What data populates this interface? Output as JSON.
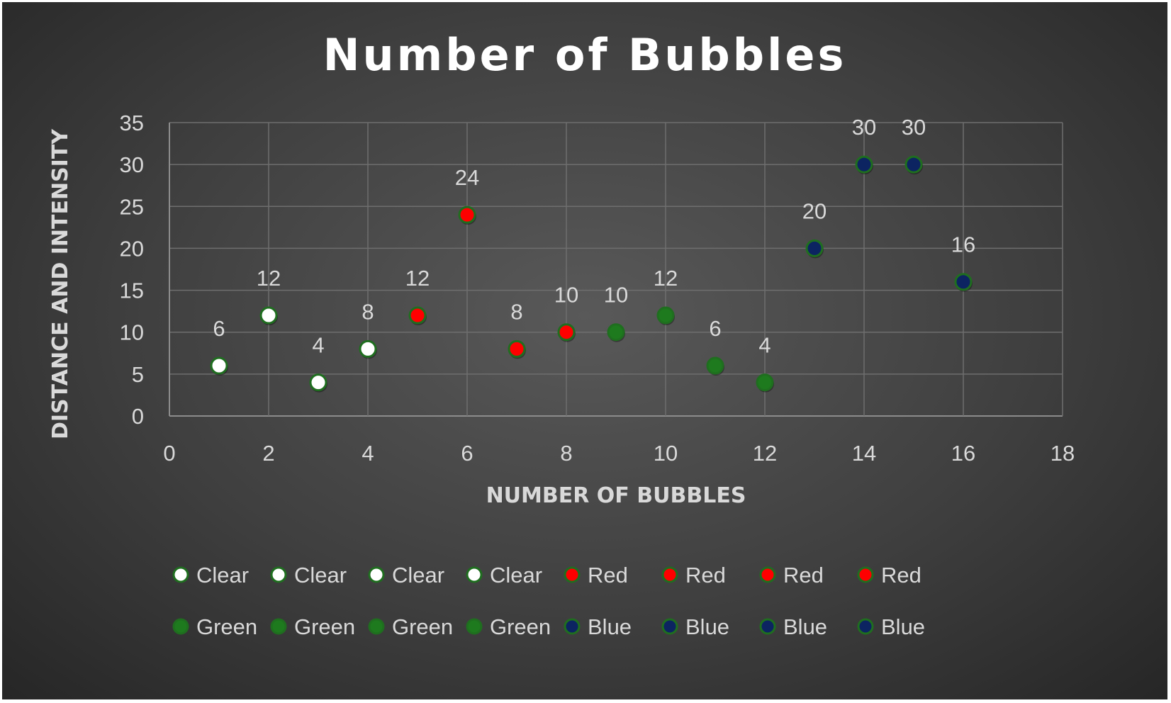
{
  "chart_data": {
    "type": "scatter",
    "title": "Number of Bubbles",
    "xlabel": "NUMBER OF BUBBLES",
    "ylabel": "DISTANCE AND INTENSITY",
    "xlim": [
      0,
      18
    ],
    "ylim": [
      0,
      35
    ],
    "xticks": [
      0,
      2,
      4,
      6,
      8,
      10,
      12,
      14,
      16,
      18
    ],
    "yticks": [
      0,
      5,
      10,
      15,
      20,
      25,
      30,
      35
    ],
    "grid": true,
    "legend_position": "bottom",
    "colors": {
      "clear": "#ffffff",
      "red": "#ff0000",
      "green": "#1e7a1e",
      "blue": "#0c2461",
      "marker_border": "#1f6e1f"
    },
    "series": [
      {
        "name": "Clear",
        "color": "clear",
        "x": [
          1
        ],
        "y": [
          6
        ]
      },
      {
        "name": "Clear",
        "color": "clear",
        "x": [
          2
        ],
        "y": [
          12
        ]
      },
      {
        "name": "Clear",
        "color": "clear",
        "x": [
          3
        ],
        "y": [
          4
        ]
      },
      {
        "name": "Clear",
        "color": "clear",
        "x": [
          4
        ],
        "y": [
          8
        ]
      },
      {
        "name": "Red",
        "color": "red",
        "x": [
          5
        ],
        "y": [
          12
        ]
      },
      {
        "name": "Red",
        "color": "red",
        "x": [
          6
        ],
        "y": [
          24
        ]
      },
      {
        "name": "Red",
        "color": "red",
        "x": [
          7
        ],
        "y": [
          8
        ]
      },
      {
        "name": "Red",
        "color": "red",
        "x": [
          8
        ],
        "y": [
          10
        ]
      },
      {
        "name": "Green",
        "color": "green",
        "x": [
          9
        ],
        "y": [
          10
        ]
      },
      {
        "name": "Green",
        "color": "green",
        "x": [
          10
        ],
        "y": [
          12
        ]
      },
      {
        "name": "Green",
        "color": "green",
        "x": [
          11
        ],
        "y": [
          6
        ]
      },
      {
        "name": "Green",
        "color": "green",
        "x": [
          12
        ],
        "y": [
          4
        ]
      },
      {
        "name": "Blue",
        "color": "blue",
        "x": [
          13
        ],
        "y": [
          20
        ]
      },
      {
        "name": "Blue",
        "color": "blue",
        "x": [
          14
        ],
        "y": [
          30
        ]
      },
      {
        "name": "Blue",
        "color": "blue",
        "x": [
          15
        ],
        "y": [
          30
        ]
      },
      {
        "name": "Blue",
        "color": "blue",
        "x": [
          16
        ],
        "y": [
          16
        ]
      }
    ]
  }
}
